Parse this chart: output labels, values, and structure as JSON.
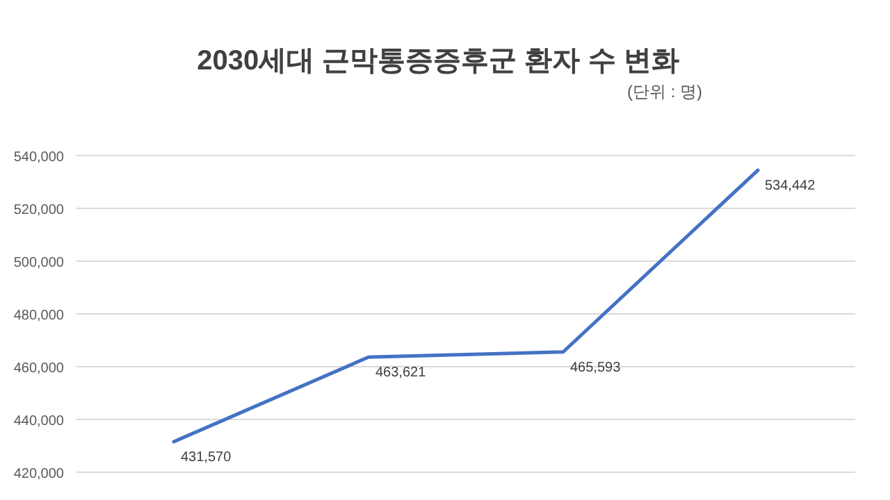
{
  "chart_data": {
    "type": "line",
    "title": "2030세대 근막통증증후군 환자 수 변화",
    "subtitle": "(단위 : 명)",
    "categories": [
      null,
      null,
      null,
      null
    ],
    "series": [
      {
        "color": "#4472c4",
        "values": [
          431570,
          463621,
          465593,
          534442
        ],
        "value_labels": [
          "431,570",
          "463,621",
          "465,593",
          "534,442"
        ]
      }
    ],
    "ylim": [
      420000,
      540000
    ],
    "yticks": [
      {
        "value": 420000,
        "label": "420,000"
      },
      {
        "value": 440000,
        "label": "440,000"
      },
      {
        "value": 460000,
        "label": "460,000"
      },
      {
        "value": 480000,
        "label": "480,000"
      },
      {
        "value": 500000,
        "label": "500,000"
      },
      {
        "value": 520000,
        "label": "520,000"
      },
      {
        "value": 540000,
        "label": "540,000"
      }
    ],
    "grid": "y",
    "marker": "none",
    "line_style": "solid"
  }
}
